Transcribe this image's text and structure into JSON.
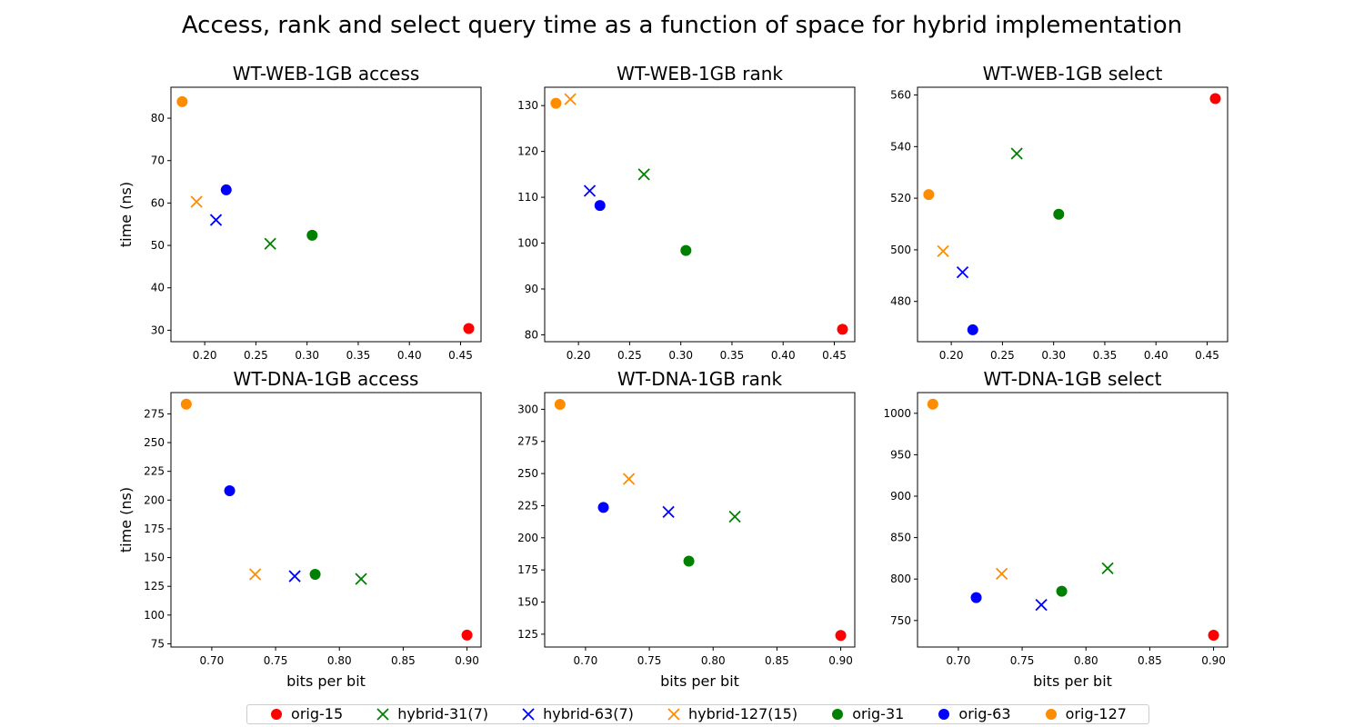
{
  "figure_title": "Access, rank and select query time as a function of space for hybrid implementation",
  "legend": [
    {
      "label": "orig-15",
      "marker": "circle",
      "color": "#ff0000"
    },
    {
      "label": "hybrid-31(7)",
      "marker": "x",
      "color": "#008000"
    },
    {
      "label": "hybrid-63(7)",
      "marker": "x",
      "color": "#0000ff"
    },
    {
      "label": "hybrid-127(15)",
      "marker": "x",
      "color": "#ff8c00"
    },
    {
      "label": "orig-31",
      "marker": "circle",
      "color": "#008000"
    },
    {
      "label": "orig-63",
      "marker": "circle",
      "color": "#0000ff"
    },
    {
      "label": "orig-127",
      "marker": "circle",
      "color": "#ff8c00"
    }
  ],
  "chart_data": [
    {
      "type": "scatter",
      "title": "WT-WEB-1GB access",
      "xlabel": "",
      "ylabel": "time (ns)",
      "xlim": [
        0.167,
        0.47
      ],
      "ylim": [
        27.3,
        87.3
      ],
      "xticks": [
        "0.20",
        "0.25",
        "0.30",
        "0.35",
        "0.40",
        "0.45"
      ],
      "yticks": [
        "30",
        "40",
        "50",
        "60",
        "70",
        "80"
      ],
      "series": [
        {
          "name": "orig-15",
          "x": [
            0.458
          ],
          "y": [
            30.4
          ]
        },
        {
          "name": "hybrid-31(7)",
          "x": [
            0.264
          ],
          "y": [
            50.4
          ]
        },
        {
          "name": "hybrid-63(7)",
          "x": [
            0.211
          ],
          "y": [
            56.0
          ]
        },
        {
          "name": "hybrid-127(15)",
          "x": [
            0.192
          ],
          "y": [
            60.3
          ]
        },
        {
          "name": "orig-31",
          "x": [
            0.305
          ],
          "y": [
            52.4
          ]
        },
        {
          "name": "orig-63",
          "x": [
            0.221
          ],
          "y": [
            63.1
          ]
        },
        {
          "name": "orig-127",
          "x": [
            0.178
          ],
          "y": [
            83.9
          ]
        }
      ]
    },
    {
      "type": "scatter",
      "title": "WT-WEB-1GB rank",
      "xlabel": "",
      "ylabel": "",
      "xlim": [
        0.167,
        0.47
      ],
      "ylim": [
        78.5,
        134.0
      ],
      "xticks": [
        "0.20",
        "0.25",
        "0.30",
        "0.35",
        "0.40",
        "0.45"
      ],
      "yticks": [
        "80",
        "90",
        "100",
        "110",
        "120",
        "130"
      ],
      "series": [
        {
          "name": "orig-15",
          "x": [
            0.458
          ],
          "y": [
            81.2
          ]
        },
        {
          "name": "hybrid-31(7)",
          "x": [
            0.264
          ],
          "y": [
            115.0
          ]
        },
        {
          "name": "hybrid-63(7)",
          "x": [
            0.211
          ],
          "y": [
            111.4
          ]
        },
        {
          "name": "hybrid-127(15)",
          "x": [
            0.192
          ],
          "y": [
            131.4
          ]
        },
        {
          "name": "orig-31",
          "x": [
            0.305
          ],
          "y": [
            98.4
          ]
        },
        {
          "name": "orig-63",
          "x": [
            0.221
          ],
          "y": [
            108.2
          ]
        },
        {
          "name": "orig-127",
          "x": [
            0.178
          ],
          "y": [
            130.5
          ]
        }
      ]
    },
    {
      "type": "scatter",
      "title": "WT-WEB-1GB select",
      "xlabel": "",
      "ylabel": "",
      "xlim": [
        0.167,
        0.47
      ],
      "ylim": [
        464.4,
        563.0
      ],
      "xticks": [
        "0.20",
        "0.25",
        "0.30",
        "0.35",
        "0.40",
        "0.45"
      ],
      "yticks": [
        "480",
        "500",
        "520",
        "540",
        "560"
      ],
      "series": [
        {
          "name": "orig-15",
          "x": [
            0.458
          ],
          "y": [
            558.6
          ]
        },
        {
          "name": "hybrid-31(7)",
          "x": [
            0.264
          ],
          "y": [
            537.3
          ]
        },
        {
          "name": "hybrid-63(7)",
          "x": [
            0.211
          ],
          "y": [
            491.3
          ]
        },
        {
          "name": "hybrid-127(15)",
          "x": [
            0.192
          ],
          "y": [
            499.5
          ]
        },
        {
          "name": "orig-31",
          "x": [
            0.305
          ],
          "y": [
            513.8
          ]
        },
        {
          "name": "orig-63",
          "x": [
            0.221
          ],
          "y": [
            469.0
          ]
        },
        {
          "name": "orig-127",
          "x": [
            0.178
          ],
          "y": [
            521.4
          ]
        }
      ]
    },
    {
      "type": "scatter",
      "title": "WT-DNA-1GB access",
      "xlabel": "bits per bit",
      "ylabel": "time (ns)",
      "xlim": [
        0.668,
        0.911
      ],
      "ylim": [
        72.2,
        293.5
      ],
      "xticks": [
        "0.70",
        "0.75",
        "0.80",
        "0.85",
        "0.90"
      ],
      "yticks": [
        "75",
        "100",
        "125",
        "150",
        "175",
        "200",
        "225",
        "250",
        "275"
      ],
      "series": [
        {
          "name": "orig-15",
          "x": [
            0.9
          ],
          "y": [
            82.6
          ]
        },
        {
          "name": "hybrid-31(7)",
          "x": [
            0.817
          ],
          "y": [
            131.4
          ]
        },
        {
          "name": "hybrid-63(7)",
          "x": [
            0.765
          ],
          "y": [
            133.8
          ]
        },
        {
          "name": "hybrid-127(15)",
          "x": [
            0.734
          ],
          "y": [
            135.4
          ]
        },
        {
          "name": "orig-31",
          "x": [
            0.781
          ],
          "y": [
            135.4
          ]
        },
        {
          "name": "orig-63",
          "x": [
            0.714
          ],
          "y": [
            208.1
          ]
        },
        {
          "name": "orig-127",
          "x": [
            0.68
          ],
          "y": [
            283.4
          ]
        }
      ]
    },
    {
      "type": "scatter",
      "title": "WT-DNA-1GB rank",
      "xlabel": "bits per bit",
      "ylabel": "",
      "xlim": [
        0.668,
        0.911
      ],
      "ylim": [
        115.0,
        313.0
      ],
      "xticks": [
        "0.70",
        "0.75",
        "0.80",
        "0.85",
        "0.90"
      ],
      "yticks": [
        "125",
        "150",
        "175",
        "200",
        "225",
        "250",
        "275",
        "300"
      ],
      "series": [
        {
          "name": "orig-15",
          "x": [
            0.9
          ],
          "y": [
            124.0
          ]
        },
        {
          "name": "hybrid-31(7)",
          "x": [
            0.817
          ],
          "y": [
            216.5
          ]
        },
        {
          "name": "hybrid-63(7)",
          "x": [
            0.765
          ],
          "y": [
            220.1
          ]
        },
        {
          "name": "hybrid-127(15)",
          "x": [
            0.734
          ],
          "y": [
            245.8
          ]
        },
        {
          "name": "orig-31",
          "x": [
            0.781
          ],
          "y": [
            181.8
          ]
        },
        {
          "name": "orig-63",
          "x": [
            0.714
          ],
          "y": [
            223.6
          ]
        },
        {
          "name": "orig-127",
          "x": [
            0.68
          ],
          "y": [
            303.8
          ]
        }
      ]
    },
    {
      "type": "scatter",
      "title": "WT-DNA-1GB select",
      "xlabel": "bits per bit",
      "ylabel": "",
      "xlim": [
        0.668,
        0.911
      ],
      "ylim": [
        718.0,
        1025.0
      ],
      "xticks": [
        "0.70",
        "0.75",
        "0.80",
        "0.85",
        "0.90"
      ],
      "yticks": [
        "750",
        "800",
        "850",
        "900",
        "950",
        "1000"
      ],
      "series": [
        {
          "name": "orig-15",
          "x": [
            0.9
          ],
          "y": [
            732.2
          ]
        },
        {
          "name": "hybrid-31(7)",
          "x": [
            0.817
          ],
          "y": [
            813.0
          ]
        },
        {
          "name": "hybrid-63(7)",
          "x": [
            0.765
          ],
          "y": [
            768.9
          ]
        },
        {
          "name": "hybrid-127(15)",
          "x": [
            0.734
          ],
          "y": [
            806.4
          ]
        },
        {
          "name": "orig-31",
          "x": [
            0.781
          ],
          "y": [
            785.3
          ]
        },
        {
          "name": "orig-63",
          "x": [
            0.714
          ],
          "y": [
            777.6
          ]
        },
        {
          "name": "orig-127",
          "x": [
            0.68
          ],
          "y": [
            1011.0
          ]
        }
      ]
    }
  ]
}
